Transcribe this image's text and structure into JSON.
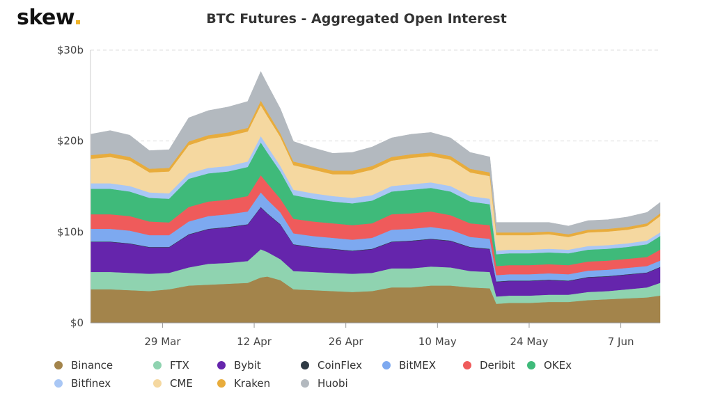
{
  "brand": {
    "name": "skew",
    "dot_color": "#f0b429"
  },
  "chart_data": {
    "type": "area",
    "stacked": true,
    "title": "BTC Futures - Aggregated Open Interest",
    "xlabel": "",
    "ylabel": "",
    "ylim": [
      0,
      30
    ],
    "y_unit": "b",
    "y_ticks": [
      0,
      10,
      20,
      30
    ],
    "y_tick_labels": [
      "$0",
      "$10b",
      "$20b",
      "$30b"
    ],
    "x_tick_labels": [
      "29 Mar",
      "12 Apr",
      "26 Apr",
      "10 May",
      "24 May",
      "7 Jun"
    ],
    "x_tick_dates": [
      "2021-03-29",
      "2021-04-12",
      "2021-04-26",
      "2021-05-10",
      "2021-05-24",
      "2021-06-07"
    ],
    "x": [
      "2021-03-18",
      "2021-03-21",
      "2021-03-24",
      "2021-03-27",
      "2021-03-30",
      "2021-04-02",
      "2021-04-05",
      "2021-04-08",
      "2021-04-11",
      "2021-04-13",
      "2021-04-14",
      "2021-04-16",
      "2021-04-18",
      "2021-04-21",
      "2021-04-24",
      "2021-04-27",
      "2021-04-30",
      "2021-05-03",
      "2021-05-06",
      "2021-05-09",
      "2021-05-12",
      "2021-05-15",
      "2021-05-18",
      "2021-05-19",
      "2021-05-21",
      "2021-05-24",
      "2021-05-27",
      "2021-05-30",
      "2021-06-02",
      "2021-06-05",
      "2021-06-08",
      "2021-06-11",
      "2021-06-13"
    ],
    "grid": true,
    "legend_position": "bottom",
    "series": [
      {
        "name": "Binance",
        "color": "#a3844b",
        "values": [
          3.7,
          3.7,
          3.6,
          3.5,
          3.7,
          4.1,
          4.2,
          4.3,
          4.4,
          5.0,
          5.1,
          4.7,
          3.7,
          3.6,
          3.5,
          3.4,
          3.5,
          3.9,
          3.9,
          4.1,
          4.1,
          3.9,
          3.8,
          2.1,
          2.2,
          2.2,
          2.3,
          2.3,
          2.5,
          2.6,
          2.7,
          2.8,
          3.0
        ]
      },
      {
        "name": "FTX",
        "color": "#8fd3b0",
        "values": [
          1.9,
          1.9,
          1.9,
          1.9,
          1.8,
          2.0,
          2.3,
          2.3,
          2.4,
          3.1,
          2.7,
          2.3,
          2.0,
          2.0,
          2.0,
          2.0,
          2.0,
          2.1,
          2.1,
          2.1,
          2.0,
          1.8,
          1.8,
          0.8,
          0.8,
          0.8,
          0.8,
          0.8,
          0.9,
          0.9,
          1.0,
          1.1,
          1.4
        ]
      },
      {
        "name": "Bybit",
        "color": "#6525ac",
        "values": [
          3.3,
          3.3,
          3.2,
          2.9,
          2.8,
          3.6,
          3.8,
          3.9,
          4.0,
          4.6,
          4.2,
          3.8,
          2.9,
          2.7,
          2.6,
          2.5,
          2.6,
          2.9,
          3.0,
          3.0,
          2.9,
          2.6,
          2.5,
          1.6,
          1.6,
          1.6,
          1.6,
          1.5,
          1.6,
          1.6,
          1.6,
          1.6,
          1.7
        ]
      },
      {
        "name": "CoinFlex",
        "color": "#2f3b45",
        "values": [
          0.05,
          0.05,
          0.05,
          0.05,
          0.05,
          0.05,
          0.05,
          0.05,
          0.05,
          0.05,
          0.05,
          0.05,
          0.05,
          0.05,
          0.05,
          0.05,
          0.05,
          0.05,
          0.05,
          0.05,
          0.05,
          0.05,
          0.05,
          0.05,
          0.05,
          0.05,
          0.05,
          0.05,
          0.05,
          0.05,
          0.05,
          0.05,
          0.05
        ]
      },
      {
        "name": "BitMEX",
        "color": "#7da9f0",
        "values": [
          1.4,
          1.4,
          1.4,
          1.3,
          1.3,
          1.4,
          1.4,
          1.4,
          1.4,
          1.6,
          1.5,
          1.3,
          1.2,
          1.2,
          1.2,
          1.2,
          1.2,
          1.3,
          1.3,
          1.3,
          1.2,
          1.1,
          1.1,
          0.7,
          0.7,
          0.7,
          0.7,
          0.7,
          0.7,
          0.7,
          0.7,
          0.7,
          0.7
        ]
      },
      {
        "name": "Deribit",
        "color": "#ef5b5b",
        "values": [
          1.6,
          1.6,
          1.6,
          1.5,
          1.4,
          1.6,
          1.6,
          1.6,
          1.7,
          1.9,
          1.8,
          1.5,
          1.6,
          1.6,
          1.6,
          1.6,
          1.6,
          1.7,
          1.7,
          1.7,
          1.6,
          1.5,
          1.5,
          1.0,
          1.0,
          1.0,
          1.0,
          1.0,
          1.0,
          1.0,
          1.0,
          1.0,
          1.2
        ]
      },
      {
        "name": "OKEx",
        "color": "#3fba7a",
        "values": [
          2.8,
          2.8,
          2.7,
          2.6,
          2.6,
          3.1,
          3.1,
          3.1,
          3.2,
          3.6,
          3.4,
          3.0,
          2.6,
          2.5,
          2.4,
          2.4,
          2.5,
          2.5,
          2.6,
          2.6,
          2.6,
          2.4,
          2.3,
          1.3,
          1.3,
          1.3,
          1.3,
          1.3,
          1.3,
          1.3,
          1.3,
          1.4,
          1.5
        ]
      },
      {
        "name": "Bitfinex",
        "color": "#a9c7f5",
        "values": [
          0.6,
          0.6,
          0.6,
          0.6,
          0.6,
          0.6,
          0.6,
          0.6,
          0.6,
          0.7,
          0.7,
          0.6,
          0.6,
          0.6,
          0.6,
          0.6,
          0.6,
          0.6,
          0.6,
          0.6,
          0.6,
          0.6,
          0.6,
          0.4,
          0.4,
          0.4,
          0.4,
          0.4,
          0.4,
          0.4,
          0.4,
          0.4,
          0.4
        ]
      },
      {
        "name": "CME",
        "color": "#f5d8a0",
        "values": [
          2.7,
          2.9,
          2.8,
          2.2,
          2.4,
          3.1,
          3.2,
          3.3,
          3.3,
          3.4,
          3.3,
          3.2,
          2.7,
          2.6,
          2.4,
          2.6,
          2.8,
          2.8,
          2.9,
          2.9,
          2.9,
          2.6,
          2.5,
          1.7,
          1.6,
          1.6,
          1.6,
          1.4,
          1.5,
          1.5,
          1.5,
          1.6,
          1.8
        ]
      },
      {
        "name": "Kraken",
        "color": "#e8ac3c",
        "values": [
          0.4,
          0.4,
          0.4,
          0.4,
          0.4,
          0.4,
          0.4,
          0.4,
          0.4,
          0.5,
          0.5,
          0.4,
          0.4,
          0.4,
          0.4,
          0.4,
          0.4,
          0.4,
          0.4,
          0.4,
          0.4,
          0.4,
          0.4,
          0.3,
          0.3,
          0.3,
          0.3,
          0.3,
          0.3,
          0.3,
          0.3,
          0.3,
          0.3
        ]
      },
      {
        "name": "Huobi",
        "color": "#b3b9bf",
        "values": [
          2.3,
          2.5,
          2.4,
          2.0,
          2.0,
          2.6,
          2.7,
          2.8,
          2.9,
          3.2,
          3.0,
          2.7,
          2.2,
          2.0,
          1.9,
          2.0,
          2.1,
          2.1,
          2.2,
          2.2,
          2.0,
          1.8,
          1.7,
          1.1,
          1.1,
          1.1,
          1.0,
          0.9,
          1.0,
          1.0,
          1.1,
          1.2,
          1.2
        ]
      }
    ]
  },
  "legend": {
    "rows": [
      [
        "Binance",
        "FTX",
        "Bybit",
        "CoinFlex",
        "BitMEX",
        "Deribit",
        "OKEx"
      ],
      [
        "Bitfinex",
        "CME",
        "Kraken",
        "Huobi"
      ]
    ]
  }
}
